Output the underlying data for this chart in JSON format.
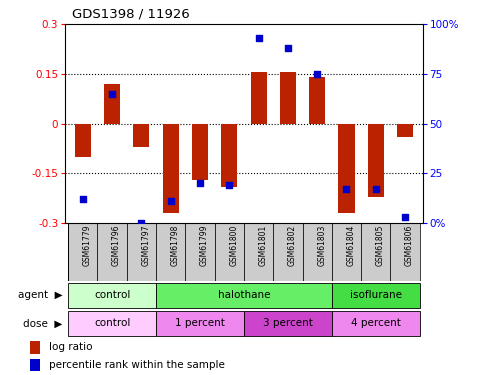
{
  "title": "GDS1398 / 11926",
  "samples": [
    "GSM61779",
    "GSM61796",
    "GSM61797",
    "GSM61798",
    "GSM61799",
    "GSM61800",
    "GSM61801",
    "GSM61802",
    "GSM61803",
    "GSM61804",
    "GSM61805",
    "GSM61806"
  ],
  "log_ratio": [
    -0.1,
    0.12,
    -0.07,
    -0.27,
    -0.17,
    -0.19,
    0.155,
    0.155,
    0.14,
    -0.27,
    -0.22,
    -0.04
  ],
  "percentile_rank": [
    12,
    65,
    0,
    11,
    20,
    19,
    93,
    88,
    75,
    17,
    17,
    3
  ],
  "bar_color": "#bb2200",
  "dot_color": "#0000cc",
  "ylim_left": [
    -0.3,
    0.3
  ],
  "ylim_right": [
    0,
    100
  ],
  "yticks_left": [
    -0.3,
    -0.15,
    0,
    0.15,
    0.3
  ],
  "ytick_labels_left": [
    "-0.3",
    "-0.15",
    "0",
    "0.15",
    "0.3"
  ],
  "ytick_labels_right": [
    "0%",
    "25",
    "50",
    "75",
    "100%"
  ],
  "dotted_lines": [
    -0.15,
    0.0,
    0.15
  ],
  "agent_groups": [
    {
      "label": "control",
      "start": 0,
      "end": 3,
      "color": "#ccffcc"
    },
    {
      "label": "halothane",
      "start": 3,
      "end": 9,
      "color": "#66ee66"
    },
    {
      "label": "isoflurane",
      "start": 9,
      "end": 12,
      "color": "#44dd44"
    }
  ],
  "dose_groups": [
    {
      "label": "control",
      "start": 0,
      "end": 3,
      "color": "#ffccff"
    },
    {
      "label": "1 percent",
      "start": 3,
      "end": 6,
      "color": "#ee88ee"
    },
    {
      "label": "3 percent",
      "start": 6,
      "end": 9,
      "color": "#cc44cc"
    },
    {
      "label": "4 percent",
      "start": 9,
      "end": 12,
      "color": "#ee88ee"
    }
  ]
}
